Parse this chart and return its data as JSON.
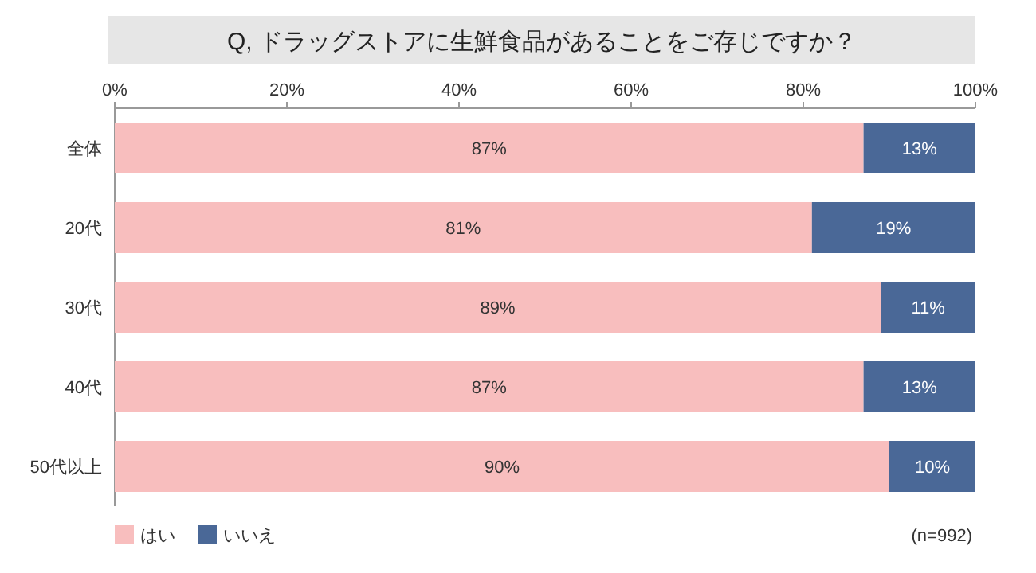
{
  "chart_data": {
    "type": "bar",
    "orientation": "horizontal",
    "stacked": true,
    "title": "Q, ドラッグストアに生鮮食品があることをご存じですか？",
    "categories": [
      "全体",
      "20代",
      "30代",
      "40代",
      "50代以上"
    ],
    "xlim": [
      0,
      100
    ],
    "xticks": [
      {
        "value": 0,
        "label": "0%"
      },
      {
        "value": 20,
        "label": "20%"
      },
      {
        "value": 40,
        "label": "40%"
      },
      {
        "value": 60,
        "label": "60%"
      },
      {
        "value": 80,
        "label": "80%"
      },
      {
        "value": 100,
        "label": "100%"
      }
    ],
    "series": [
      {
        "name": "はい",
        "color": "#f8bebe",
        "values": [
          87,
          81,
          89,
          87,
          90
        ],
        "value_labels": [
          "87%",
          "81%",
          "89%",
          "87%",
          "90%"
        ]
      },
      {
        "name": "いいえ",
        "color": "#4a6897",
        "values": [
          13,
          19,
          11,
          13,
          10
        ],
        "value_labels": [
          "13%",
          "19%",
          "11%",
          "13%",
          "10%"
        ]
      }
    ],
    "legend": "bottom left",
    "annotations": [
      "(n=992)"
    ]
  }
}
